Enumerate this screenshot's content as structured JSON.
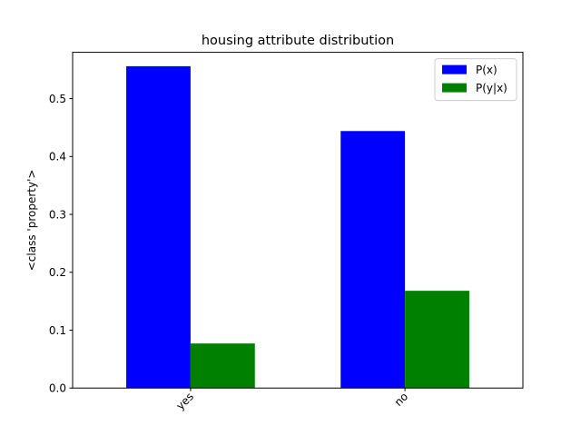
{
  "chart_data": {
    "type": "bar",
    "title": "housing attribute distribution",
    "xlabel": "",
    "ylabel": "<class 'property'>",
    "categories": [
      "yes",
      "no"
    ],
    "series": [
      {
        "name": "P(x)",
        "color": "#0000ff",
        "values": [
          0.556,
          0.444
        ]
      },
      {
        "name": "P(y|x)",
        "color": "#008000",
        "values": [
          0.077,
          0.168
        ]
      }
    ],
    "ylim": [
      0,
      0.58
    ],
    "yticks": [
      "0.0",
      "0.1",
      "0.2",
      "0.3",
      "0.4",
      "0.5"
    ],
    "xtick_rotation": 45,
    "legend": "top-right",
    "grid": false
  }
}
